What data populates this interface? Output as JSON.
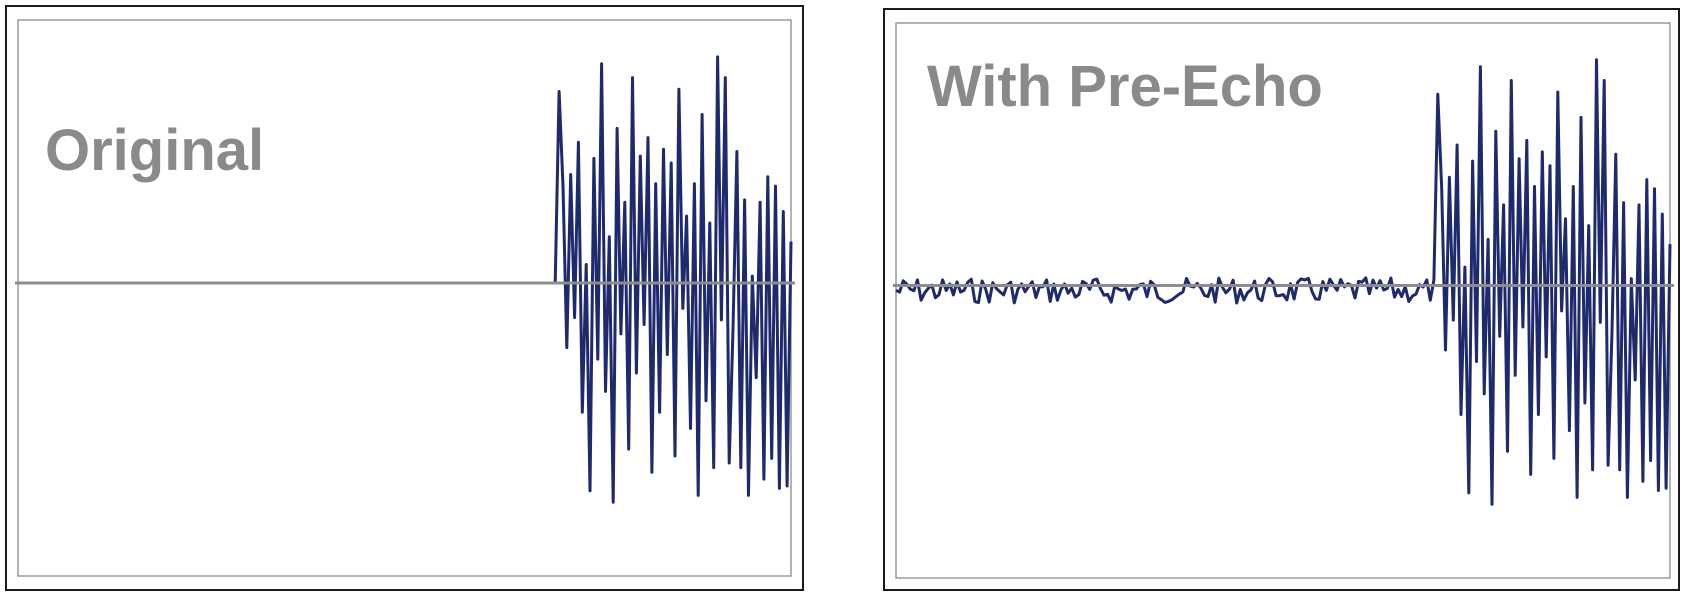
{
  "chart_data": [
    {
      "type": "line",
      "title": "Original",
      "series_color": "#1f2a6e",
      "baseline_color": "#8c8c8c",
      "frame_color": "#9a9a9a",
      "title_color": "#8a8a8a",
      "ylim": [
        -1,
        1
      ],
      "xlim": [
        0,
        1
      ],
      "pre_region_end": 0.695,
      "y": [
        0,
        0,
        0.83,
        0.42,
        -0.28,
        0.47,
        -0.15,
        0.61,
        -0.56,
        0.08,
        -0.9,
        0.54,
        -0.33,
        0.95,
        -0.47,
        0.2,
        -0.95,
        0.67,
        -0.22,
        0.35,
        -0.72,
        0.89,
        -0.39,
        0.55,
        -0.18,
        0.63,
        -0.82,
        0.43,
        -0.56,
        0.58,
        -0.31,
        0.52,
        -0.75,
        0.84,
        -0.11,
        0.29,
        -0.63,
        0.43,
        -0.92,
        0.73,
        -0.51,
        0.26,
        -0.8,
        0.98,
        -0.16,
        0.89,
        -0.78,
        -0.2,
        0.57,
        -0.8,
        0.36,
        -0.92,
        0.03,
        -0.41,
        0.35,
        -0.85,
        0.46,
        -0.76,
        0.42,
        -0.89,
        0.31,
        -0.88,
        0.18
      ]
    },
    {
      "type": "line",
      "title": "With Pre-Echo",
      "series_color": "#1f2a6e",
      "baseline_color": "#8c8c8c",
      "frame_color": "#9a9a9a",
      "title_color": "#8a8a8a",
      "ylim": [
        -1,
        1
      ],
      "xlim": [
        0,
        1
      ],
      "pre_region_end": 0.695,
      "pre_echo_amplitude": 0.1,
      "y": [
        0,
        0,
        0.83,
        0.42,
        -0.28,
        0.47,
        -0.15,
        0.61,
        -0.56,
        0.08,
        -0.9,
        0.54,
        -0.33,
        0.95,
        -0.47,
        0.2,
        -0.95,
        0.67,
        -0.22,
        0.35,
        -0.72,
        0.89,
        -0.39,
        0.55,
        -0.18,
        0.63,
        -0.82,
        0.43,
        -0.56,
        0.58,
        -0.31,
        0.52,
        -0.75,
        0.84,
        -0.11,
        0.29,
        -0.63,
        0.43,
        -0.92,
        0.73,
        -0.51,
        0.26,
        -0.8,
        0.98,
        -0.16,
        0.89,
        -0.78,
        -0.2,
        0.57,
        -0.8,
        0.36,
        -0.92,
        0.03,
        -0.41,
        0.35,
        -0.85,
        0.46,
        -0.76,
        0.42,
        -0.89,
        0.31,
        -0.88,
        0.18
      ]
    }
  ]
}
